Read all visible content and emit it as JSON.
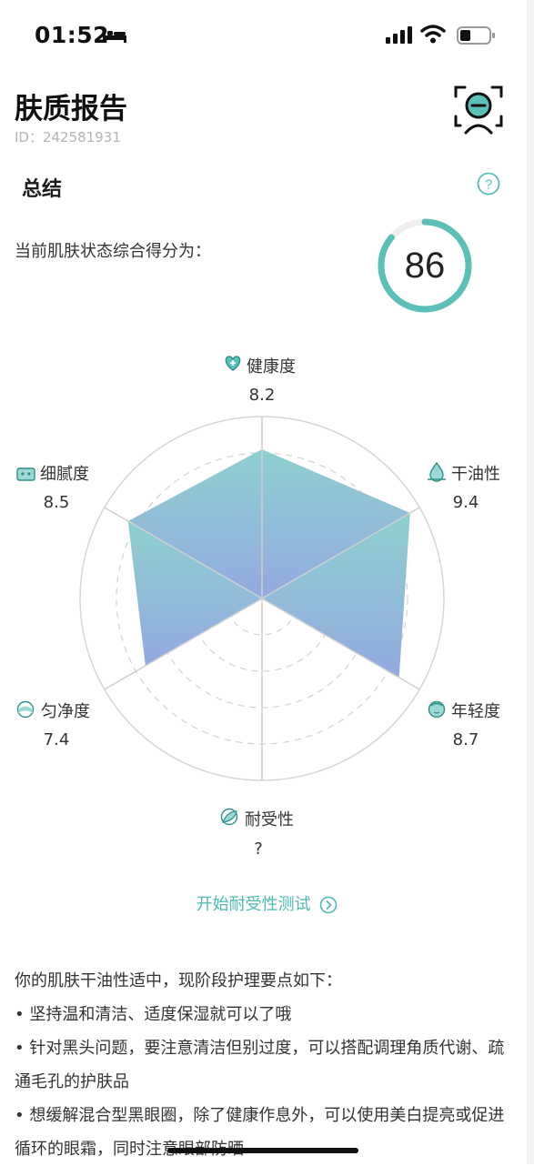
{
  "status_bar": {
    "time": "01:52"
  },
  "header": {
    "title": "肤质报告",
    "user_id": "ID：242581931"
  },
  "summary": {
    "heading": "总结",
    "score_label": "当前肌肤状态综合得分为：",
    "score": "86",
    "score_fraction": 0.86
  },
  "chart_data": {
    "type": "radar",
    "axes": [
      "健康度",
      "干油性",
      "年轻度",
      "耐受性",
      "匀净度",
      "细腻度"
    ],
    "values": [
      8.2,
      9.4,
      8.7,
      null,
      7.4,
      8.5
    ],
    "value_labels": [
      "8.2",
      "9.4",
      "8.7",
      "?",
      "7.4",
      "8.5"
    ],
    "range": [
      0,
      10
    ],
    "fill_colors": [
      "#8fd0cf",
      "#93a9e0"
    ]
  },
  "actions": {
    "test_link": "开始耐受性测试"
  },
  "advice": {
    "intro": "你的肌肤干油性适中，现阶段护理要点如下：",
    "items": [
      "• 坚持温和清洁、适度保湿就可以了哦",
      "• 针对黑头问题，要注意清洁但别过度，可以搭配调理角质代谢、疏通毛孔的护肤品",
      "• 想缓解混合型黑眼圈，除了健康作息外，可以使用美白提亮或促进循环的眼霜，同时注意眼部防晒"
    ]
  }
}
